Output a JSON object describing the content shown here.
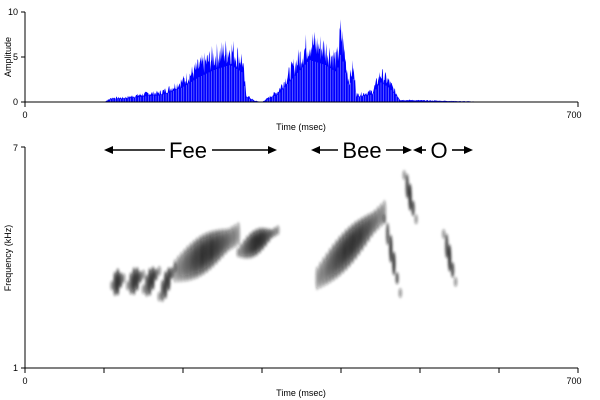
{
  "colors": {
    "waveform": "#0000ff",
    "axis": "#000000",
    "spectrogram_ink": "#1a1a1a",
    "background": "#ffffff"
  },
  "chart_data": [
    {
      "id": "waveform",
      "type": "area",
      "xlabel": "Time (msec)",
      "ylabel": "Amplitude",
      "xlim": [
        0,
        700
      ],
      "ylim": [
        0,
        10
      ],
      "x_tick_labels": [
        "0",
        "700"
      ],
      "y_tick_labels": [
        "0",
        "5",
        "10"
      ],
      "grid": false,
      "envelope": {
        "x": [
          0,
          100,
          110,
          125,
          140,
          155,
          170,
          185,
          200,
          220,
          240,
          260,
          275,
          280,
          290,
          300,
          320,
          340,
          360,
          380,
          395,
          400,
          410,
          415,
          420,
          440,
          450,
          460,
          475,
          600,
          700
        ],
        "y": [
          0,
          0,
          0.6,
          0.6,
          0.9,
          1.2,
          1.3,
          2,
          3,
          5,
          6.5,
          7.5,
          6,
          1,
          0.2,
          0,
          1.5,
          5,
          8.5,
          7.5,
          6,
          10,
          3,
          5,
          1,
          1.5,
          4,
          3,
          0.3,
          0,
          0
        ]
      }
    },
    {
      "id": "spectrogram",
      "type": "heatmap",
      "xlabel": "Time (msec)",
      "ylabel": "Frequency (kHz)",
      "xlim": [
        0,
        700
      ],
      "ylim": [
        1,
        7
      ],
      "x_tick_labels": [
        "0",
        "700"
      ],
      "y_tick_labels": [
        "1",
        "7"
      ],
      "grid": false,
      "annotations": [
        {
          "label": "Fee",
          "x_start": 100,
          "x_end": 320
        },
        {
          "label": "Bee",
          "x_start": 360,
          "x_end": 450
        },
        {
          "label": "O",
          "x_start": 450,
          "x_end": 520
        }
      ],
      "ridges": [
        {
          "x_start": 110,
          "x_end": 125,
          "f_start": 3.4,
          "f_end": 3.6
        },
        {
          "x_start": 130,
          "x_end": 150,
          "f_start": 3.4,
          "f_end": 3.7
        },
        {
          "x_start": 150,
          "x_end": 170,
          "f_start": 3.3,
          "f_end": 3.8
        },
        {
          "x_start": 170,
          "x_end": 190,
          "f_start": 3.1,
          "f_end": 3.9
        },
        {
          "x_start": 190,
          "x_end": 270,
          "f_start": 3.8,
          "f_end": 4.8
        },
        {
          "x_start": 270,
          "x_end": 320,
          "f_start": 4.3,
          "f_end": 4.9
        },
        {
          "x_start": 370,
          "x_end": 455,
          "f_start": 3.6,
          "f_end": 5.4
        },
        {
          "x_start": 455,
          "x_end": 475,
          "f_start": 5.2,
          "f_end": 3.2
        },
        {
          "x_start": 480,
          "x_end": 495,
          "f_start": 6.4,
          "f_end": 5.2
        },
        {
          "x_start": 530,
          "x_end": 545,
          "f_start": 4.8,
          "f_end": 3.5
        }
      ]
    }
  ],
  "labels": {
    "wave_xlabel": "Time (msec)",
    "wave_ylabel": "Amplitude",
    "spec_xlabel": "Time (msec)",
    "spec_ylabel": "Frequency (kHz)",
    "wave_x0": "0",
    "wave_x1": "700",
    "wave_y0": "0",
    "wave_y5": "5",
    "wave_y10": "10",
    "spec_x0": "0",
    "spec_x1": "700",
    "spec_y1": "1",
    "spec_y7": "7",
    "syllable_fee": "Fee",
    "syllable_bee": "Bee",
    "syllable_o": "O"
  }
}
